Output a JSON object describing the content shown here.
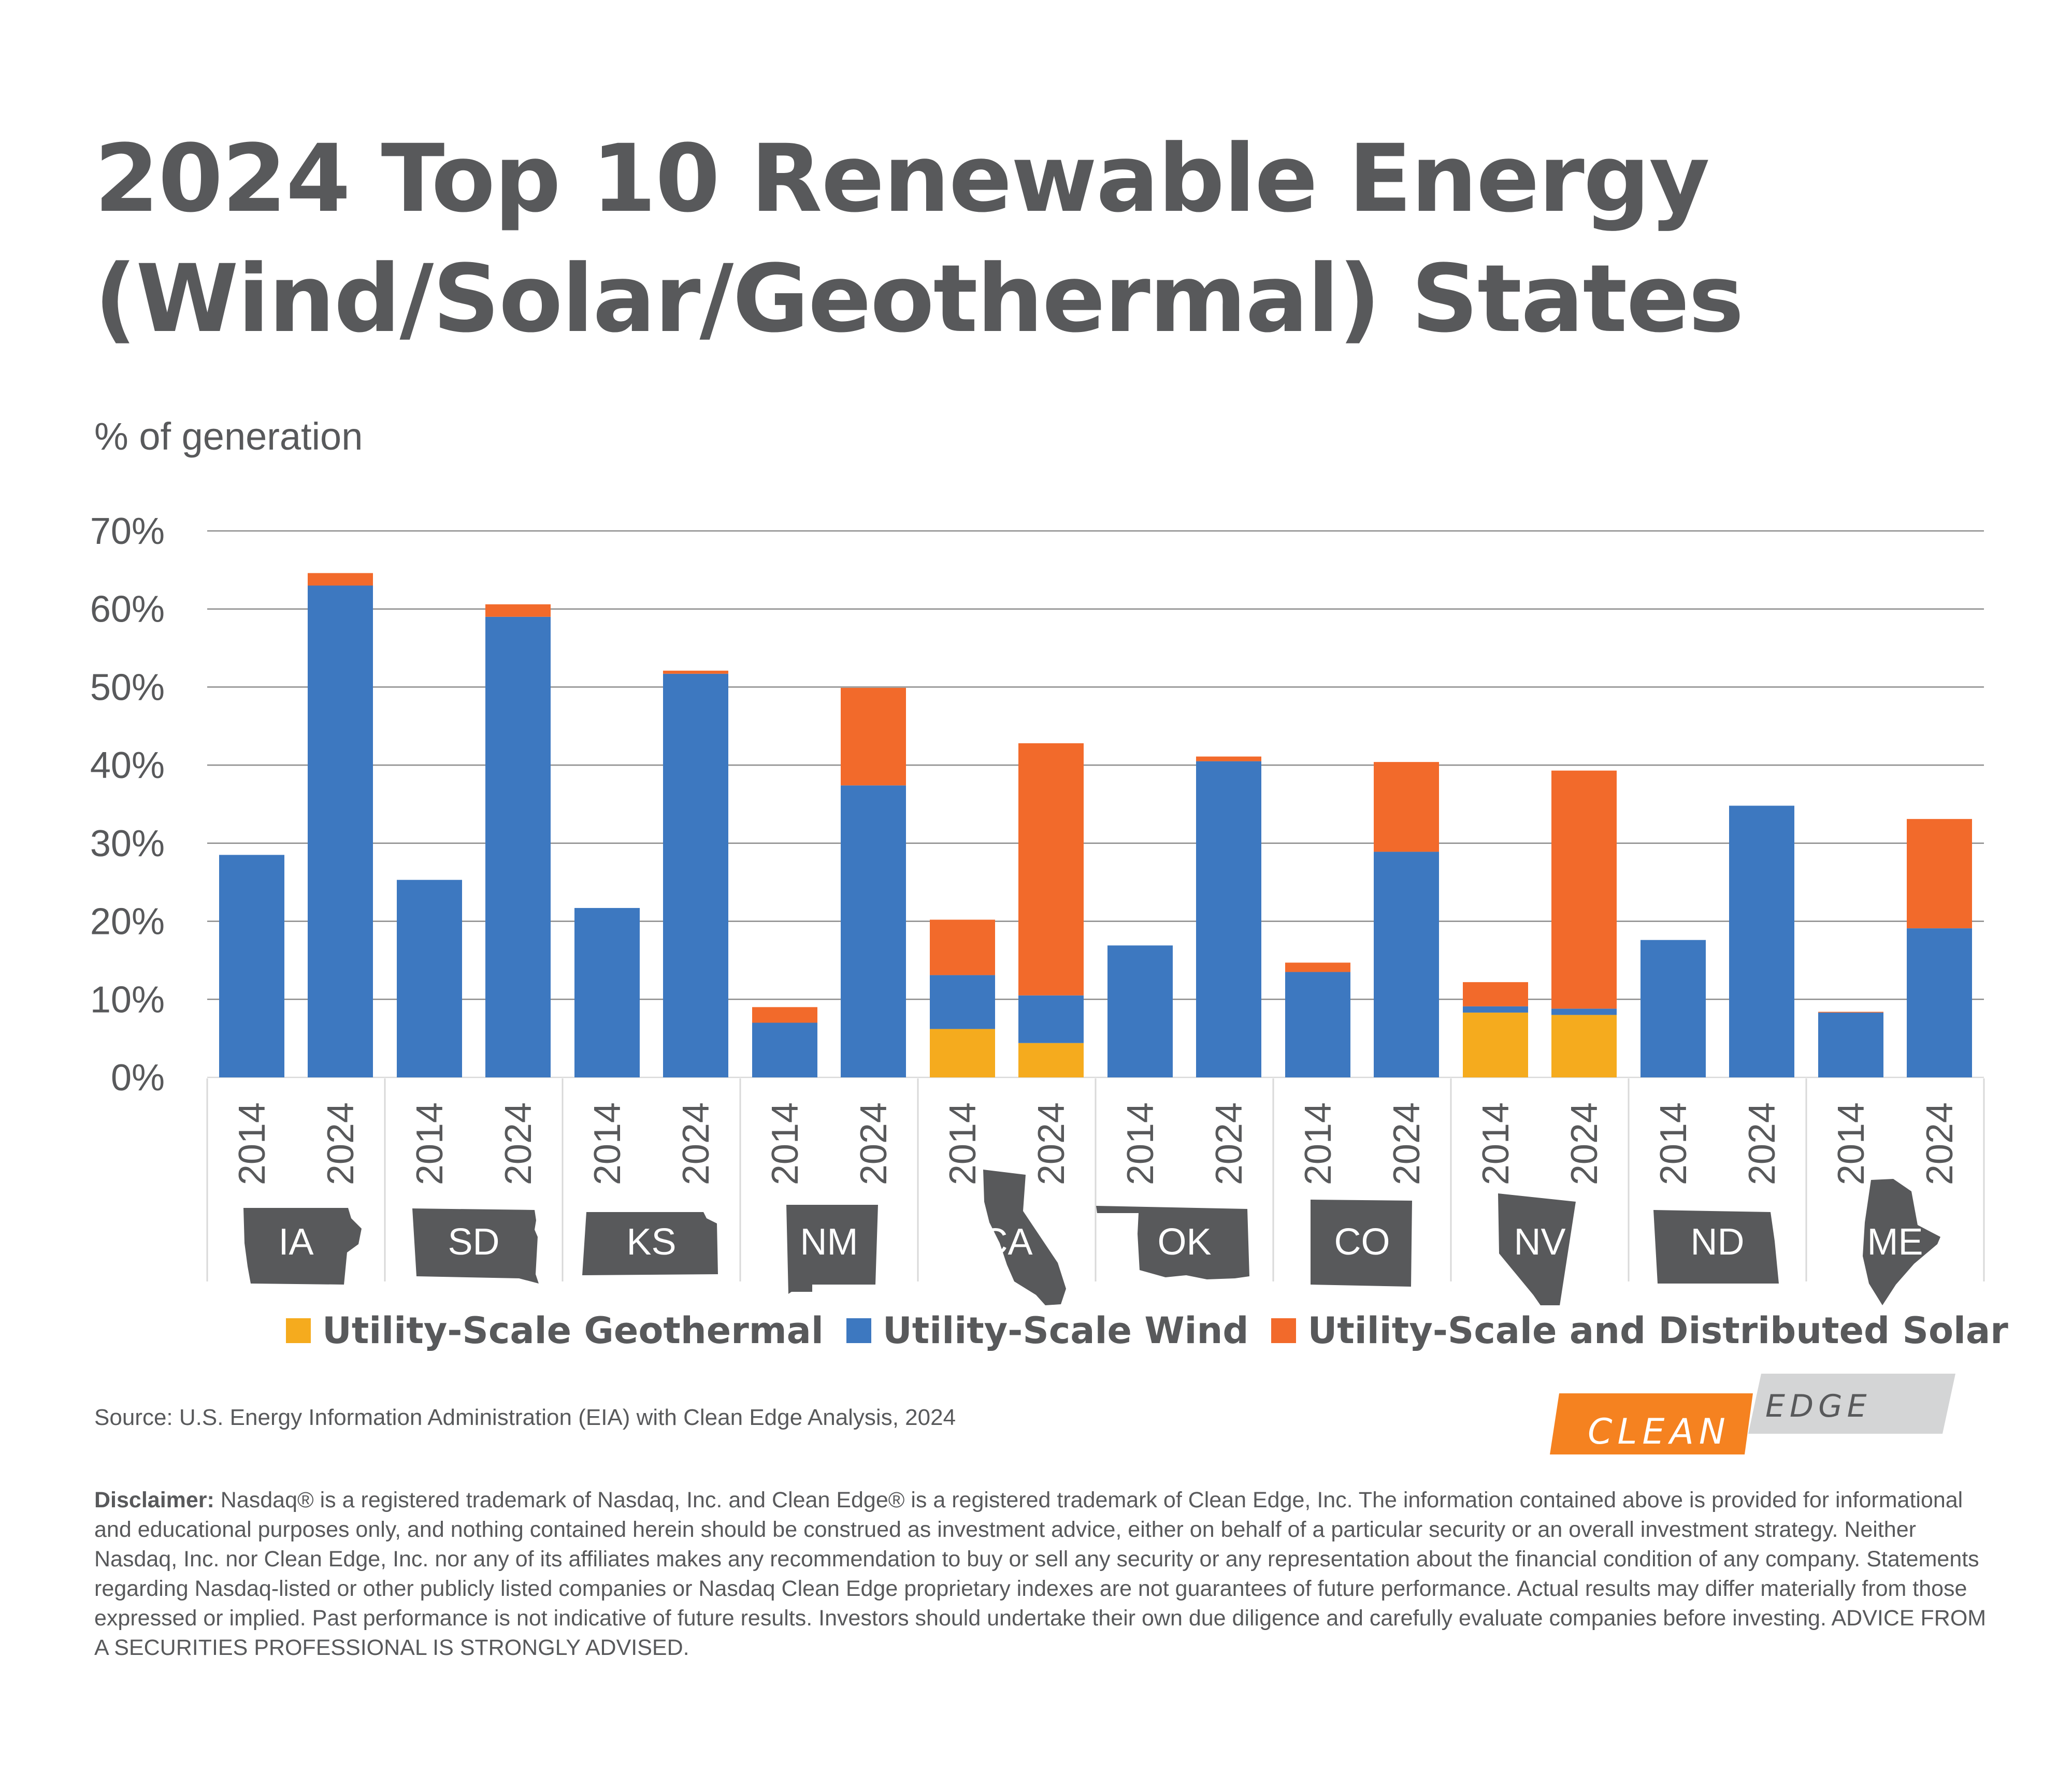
{
  "title": {
    "line1": "2024 Top 10 Renewable Energy",
    "line2": "(Wind/Solar/Geothermal) States"
  },
  "y_axis_label": "% of generation",
  "legend": [
    {
      "label": "Utility-Scale Geothermal",
      "color": "#f5ab1e"
    },
    {
      "label": "Utility-Scale Wind",
      "color": "#3d78c0"
    },
    {
      "label": "Utility-Scale and Distributed Solar",
      "color": "#f26a2b"
    }
  ],
  "source": "Source: U.S. Energy Information Administration (EIA) with Clean Edge Analysis, 2024",
  "logo": {
    "word1": "CLEAN",
    "word2": "EDGE"
  },
  "disclaimer": {
    "label": "Disclaimer:",
    "text": " Nasdaq® is a registered trademark of Nasdaq, Inc. and Clean Edge® is a registered trademark of Clean Edge, Inc. The information contained above is provided for informational and educational purposes only, and nothing contained herein should be construed as investment advice, either on behalf of a particular security or an overall investment strategy. Neither Nasdaq, Inc. nor Clean Edge, Inc. nor any of its affiliates makes any recommendation to buy or sell any security or any representation about the financial condition of any company. Statements regarding Nasdaq-listed or other publicly listed companies or Nasdaq Clean Edge proprietary indexes are not guarantees of future performance. Actual results may differ materially from those expressed or implied. Past performance is not indicative of future results. Investors should undertake their own due diligence and carefully evaluate companies before investing.  ADVICE FROM A SECURITIES PROFESSIONAL IS STRONGLY ADVISED."
  },
  "chart_data": {
    "type": "bar",
    "stacked": true,
    "title": "2024 Top 10 Renewable Energy (Wind/Solar/Geothermal) States",
    "ylabel": "% of generation",
    "ylim": [
      0,
      70
    ],
    "yticks": [
      "0%",
      "10%",
      "20%",
      "30%",
      "40%",
      "50%",
      "60%",
      "70%"
    ],
    "grid": true,
    "legend_position": "bottom",
    "groups": [
      "IA",
      "SD",
      "KS",
      "NM",
      "CA",
      "OK",
      "CO",
      "NV",
      "ND",
      "ME"
    ],
    "years": [
      "2014",
      "2024"
    ],
    "categories": [
      "IA 2014",
      "IA 2024",
      "SD 2014",
      "SD 2024",
      "KS 2014",
      "KS 2024",
      "NM 2014",
      "NM 2024",
      "CA 2014",
      "CA 2024",
      "OK 2014",
      "OK 2024",
      "CO 2014",
      "CO 2024",
      "NV 2014",
      "NV 2024",
      "ND 2014",
      "ND 2024",
      "ME 2014",
      "ME 2024"
    ],
    "series": [
      {
        "name": "Utility-Scale Geothermal",
        "color": "#f5ab1e",
        "values": [
          0,
          0,
          0,
          0,
          0,
          0,
          0,
          0,
          6.2,
          4.4,
          0,
          0,
          0,
          0,
          8.3,
          8.0,
          0,
          0,
          0,
          0
        ]
      },
      {
        "name": "Utility-Scale Wind",
        "color": "#3d78c0",
        "values": [
          28.5,
          63.0,
          25.3,
          59.0,
          21.7,
          51.7,
          7.0,
          37.4,
          6.9,
          6.1,
          16.9,
          40.5,
          13.5,
          28.9,
          0.8,
          0.8,
          17.6,
          34.8,
          8.3,
          19.1
        ]
      },
      {
        "name": "Utility-Scale and Distributed Solar",
        "color": "#f26a2b",
        "values": [
          0,
          1.6,
          0,
          1.6,
          0,
          0.4,
          2.0,
          12.5,
          7.1,
          32.3,
          0,
          0.6,
          1.2,
          11.5,
          3.1,
          30.5,
          0,
          0,
          0.1,
          14.0
        ]
      }
    ]
  }
}
